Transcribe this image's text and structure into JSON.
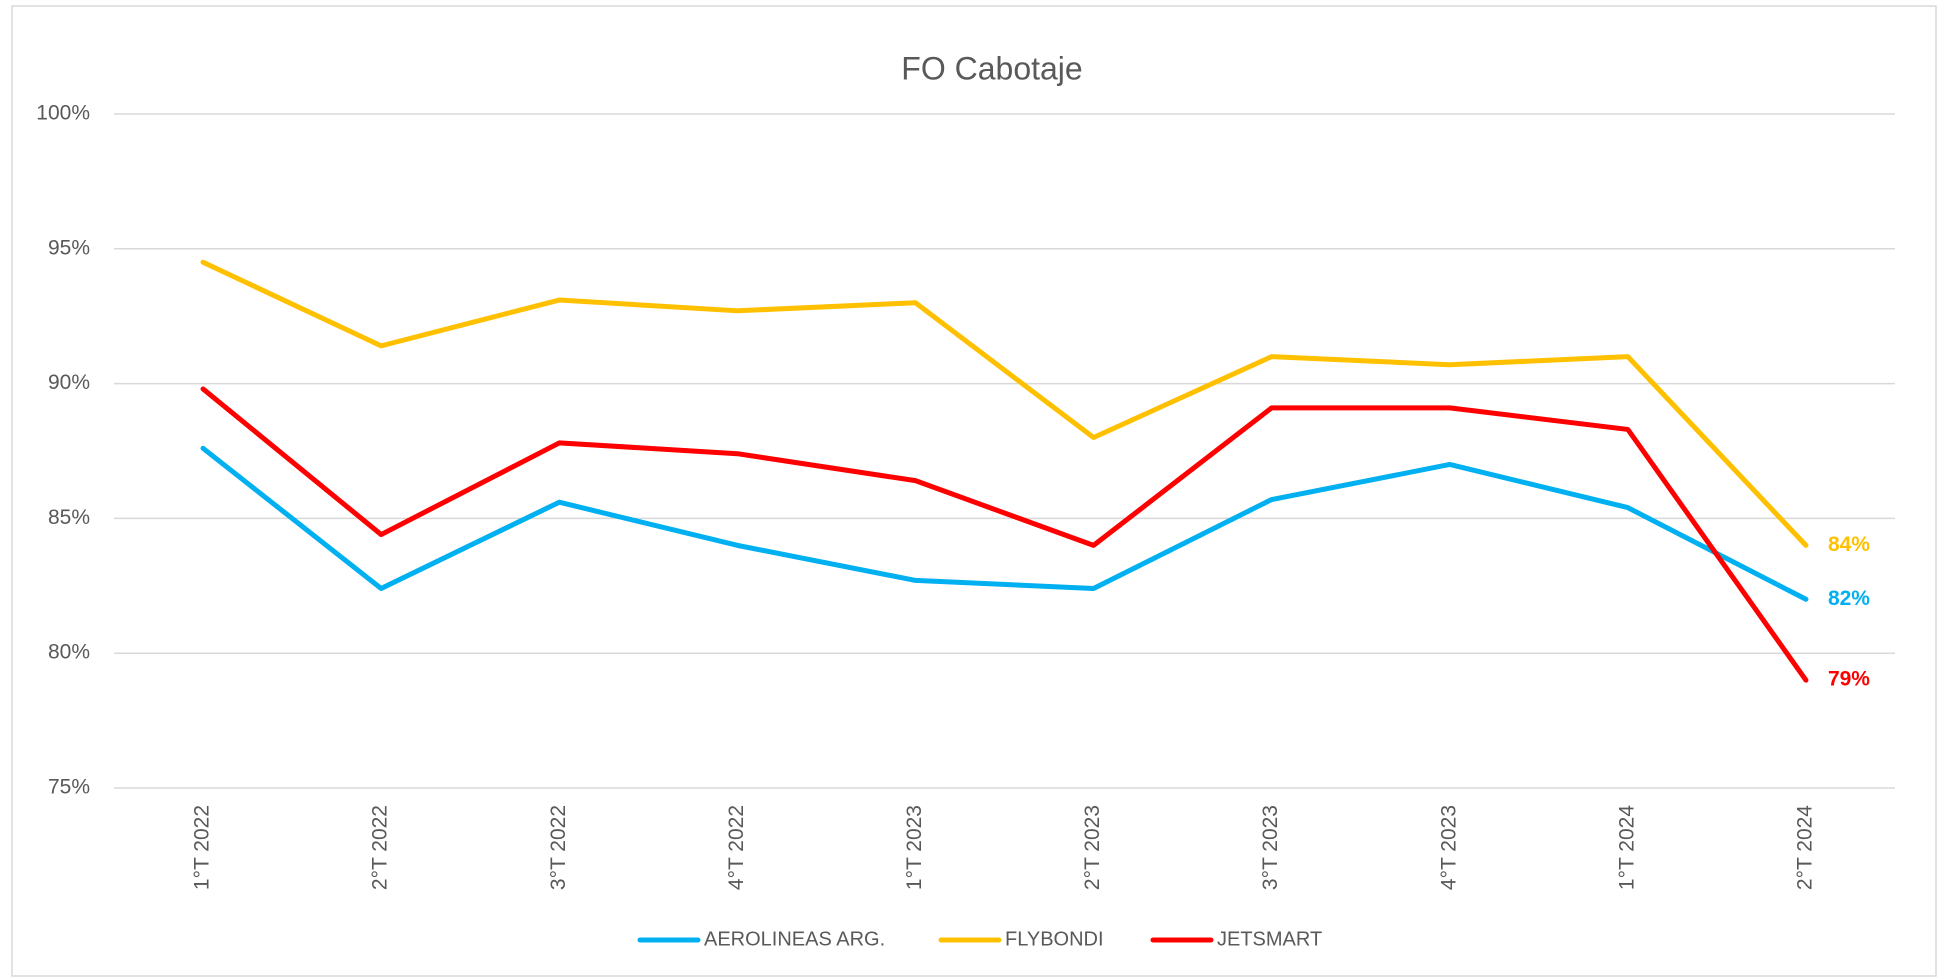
{
  "chart_data": {
    "type": "line",
    "title": "FO Cabotaje",
    "categories": [
      "1°T 2022",
      "2°T 2022",
      "3°T 2022",
      "4°T 2022",
      "1°T 2023",
      "2°T 2023",
      "3°T 2023",
      "4°T 2023",
      "1°T 2024",
      "2°T 2024"
    ],
    "series": [
      {
        "name": "AEROLINEAS ARG.",
        "color": "#00b0f0",
        "values": [
          87.6,
          82.4,
          85.6,
          84.0,
          82.7,
          82.4,
          85.7,
          87.0,
          85.4,
          82
        ],
        "value_labels": [
          null,
          null,
          null,
          null,
          null,
          null,
          null,
          null,
          null,
          "82%"
        ]
      },
      {
        "name": "FLYBONDI",
        "color": "#ffc000",
        "values": [
          94.5,
          91.4,
          93.1,
          92.7,
          93.0,
          88.0,
          91.0,
          90.7,
          91.0,
          84
        ],
        "value_labels": [
          null,
          null,
          null,
          null,
          null,
          null,
          null,
          null,
          null,
          "84%"
        ]
      },
      {
        "name": "JETSMART",
        "color": "#ff0000",
        "values": [
          89.8,
          84.4,
          87.8,
          87.4,
          86.4,
          84.0,
          89.1,
          89.1,
          88.3,
          79
        ],
        "value_labels": [
          null,
          null,
          null,
          null,
          null,
          null,
          null,
          null,
          null,
          "79%"
        ]
      }
    ],
    "ylim": [
      75,
      100
    ],
    "yticks": [
      {
        "value": 75,
        "label": "75%"
      },
      {
        "value": 80,
        "label": "80%"
      },
      {
        "value": 85,
        "label": "85%"
      },
      {
        "value": 90,
        "label": "90%"
      },
      {
        "value": 95,
        "label": "95%"
      },
      {
        "value": 100,
        "label": "100%"
      }
    ],
    "grid": true,
    "legend": "bottom"
  }
}
